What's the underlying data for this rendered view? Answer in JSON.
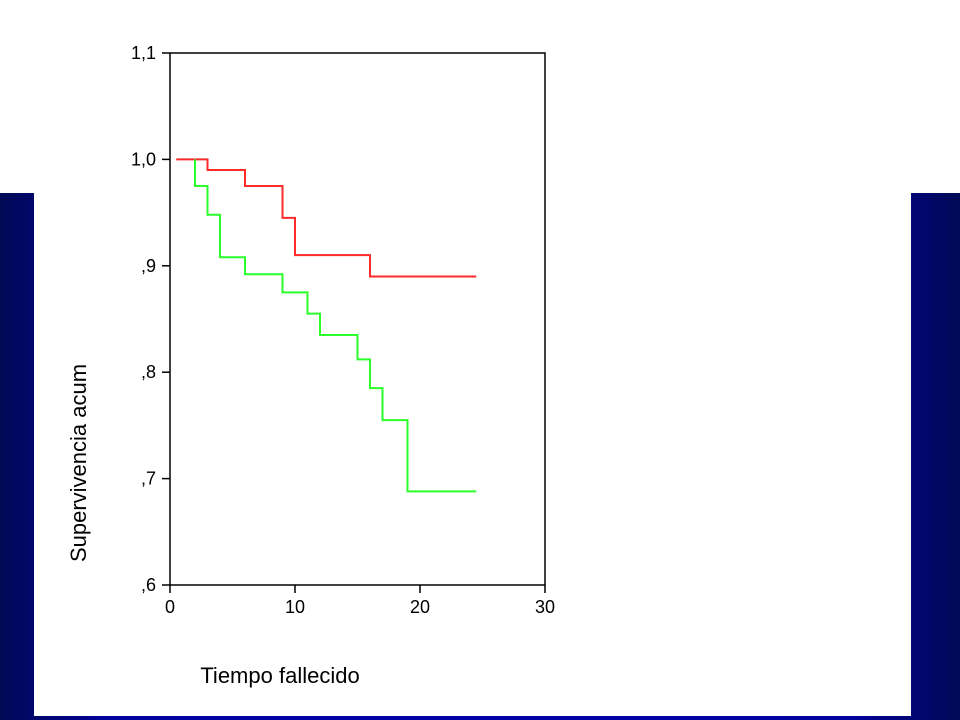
{
  "chart_data": {
    "type": "line",
    "step": true,
    "xlabel": "Tiempo fallecido",
    "ylabel": "Supervivencia acum",
    "xlim": [
      0,
      30
    ],
    "ylim": [
      0.6,
      1.1
    ],
    "x_ticks": [
      0,
      10,
      20,
      30
    ],
    "x_tick_labels": [
      "0",
      "10",
      "20",
      "30"
    ],
    "y_ticks": [
      0.6,
      0.7,
      0.8,
      0.9,
      1.0,
      1.1
    ],
    "y_tick_labels": [
      ",6",
      ",7",
      ",8",
      ",9",
      "1,0",
      "1,1"
    ],
    "grid": false,
    "series": [
      {
        "color": "#ff2a2a",
        "x": [
          0.5,
          3,
          6,
          9,
          10,
          16,
          24.5
        ],
        "y": [
          1.0,
          0.99,
          0.975,
          0.945,
          0.91,
          0.89,
          0.89
        ]
      },
      {
        "color": "#2aff2a",
        "x": [
          2,
          2,
          3,
          4,
          6,
          9,
          11,
          12,
          15,
          16,
          17,
          19,
          24.5
        ],
        "y": [
          1.0,
          0.975,
          0.948,
          0.908,
          0.892,
          0.875,
          0.855,
          0.835,
          0.812,
          0.785,
          0.755,
          0.688,
          0.688
        ]
      }
    ]
  }
}
